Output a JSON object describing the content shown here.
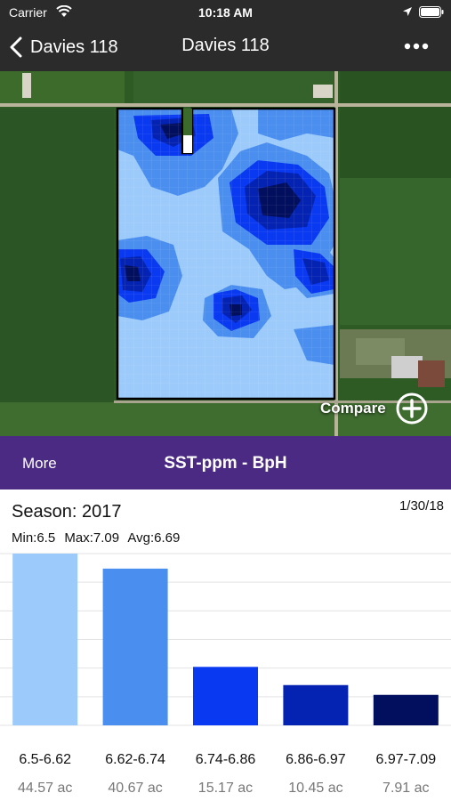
{
  "status_bar": {
    "carrier": "Carrier",
    "time": "10:18 AM"
  },
  "nav": {
    "back_label": "Davies 118",
    "title": "Davies 118"
  },
  "map": {
    "compare_label": "Compare"
  },
  "layer_bar": {
    "more_label": "More",
    "layer_title": "SST-ppm - BpH",
    "color": "#4b2a84"
  },
  "info": {
    "season": "Season: 2017",
    "date": "1/30/18",
    "min": "Min:6.5",
    "max": "Max:7.09",
    "avg": "Avg:6.69"
  },
  "chart_data": {
    "type": "bar",
    "categories": [
      "6.5-6.62",
      "6.62-6.74",
      "6.74-6.86",
      "6.86-6.97",
      "6.97-7.09"
    ],
    "values": [
      44.57,
      40.67,
      15.17,
      10.45,
      7.91
    ],
    "value_labels": [
      "44.57 ac",
      "40.67 ac",
      "15.17 ac",
      "10.45 ac",
      "7.91 ac"
    ],
    "colors": [
      "#9ccafb",
      "#4a8ef0",
      "#0a39f2",
      "#0523b2",
      "#020f5e"
    ],
    "ylim": [
      0,
      44.57
    ],
    "grid": true
  }
}
